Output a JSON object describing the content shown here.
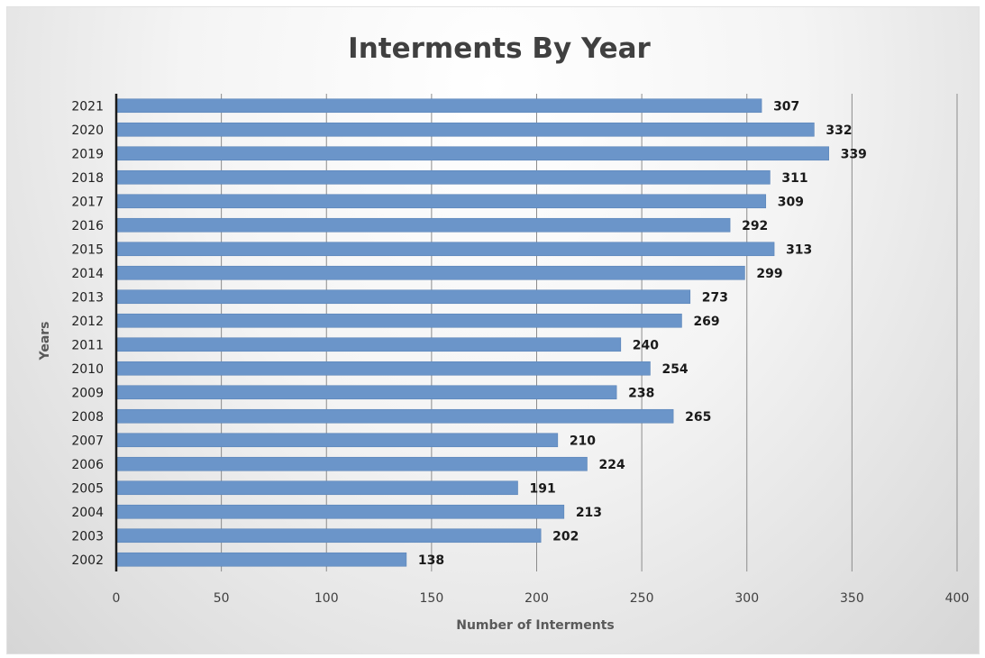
{
  "chart_data": {
    "type": "bar",
    "orientation": "horizontal",
    "title": "Interments By Year",
    "xlabel": "Number of Interments",
    "ylabel": "Years",
    "categories": [
      "2021",
      "2020",
      "2019",
      "2018",
      "2017",
      "2016",
      "2015",
      "2014",
      "2013",
      "2012",
      "2011",
      "2010",
      "2009",
      "2008",
      "2007",
      "2006",
      "2005",
      "2004",
      "2003",
      "2002"
    ],
    "values": [
      307,
      332,
      339,
      311,
      309,
      292,
      313,
      299,
      273,
      269,
      240,
      254,
      238,
      265,
      210,
      224,
      191,
      213,
      202,
      138
    ],
    "xlim": [
      0,
      400
    ],
    "xticks": [
      0,
      50,
      100,
      150,
      200,
      250,
      300,
      350,
      400
    ],
    "grid": "vertical",
    "data_labels": true,
    "legend": "none",
    "colors": {
      "bar": "#6b95c9",
      "bar_edge": "#5a84b8",
      "gridline": "#8c8c8c",
      "axis_line": "#1a1a1a"
    }
  }
}
